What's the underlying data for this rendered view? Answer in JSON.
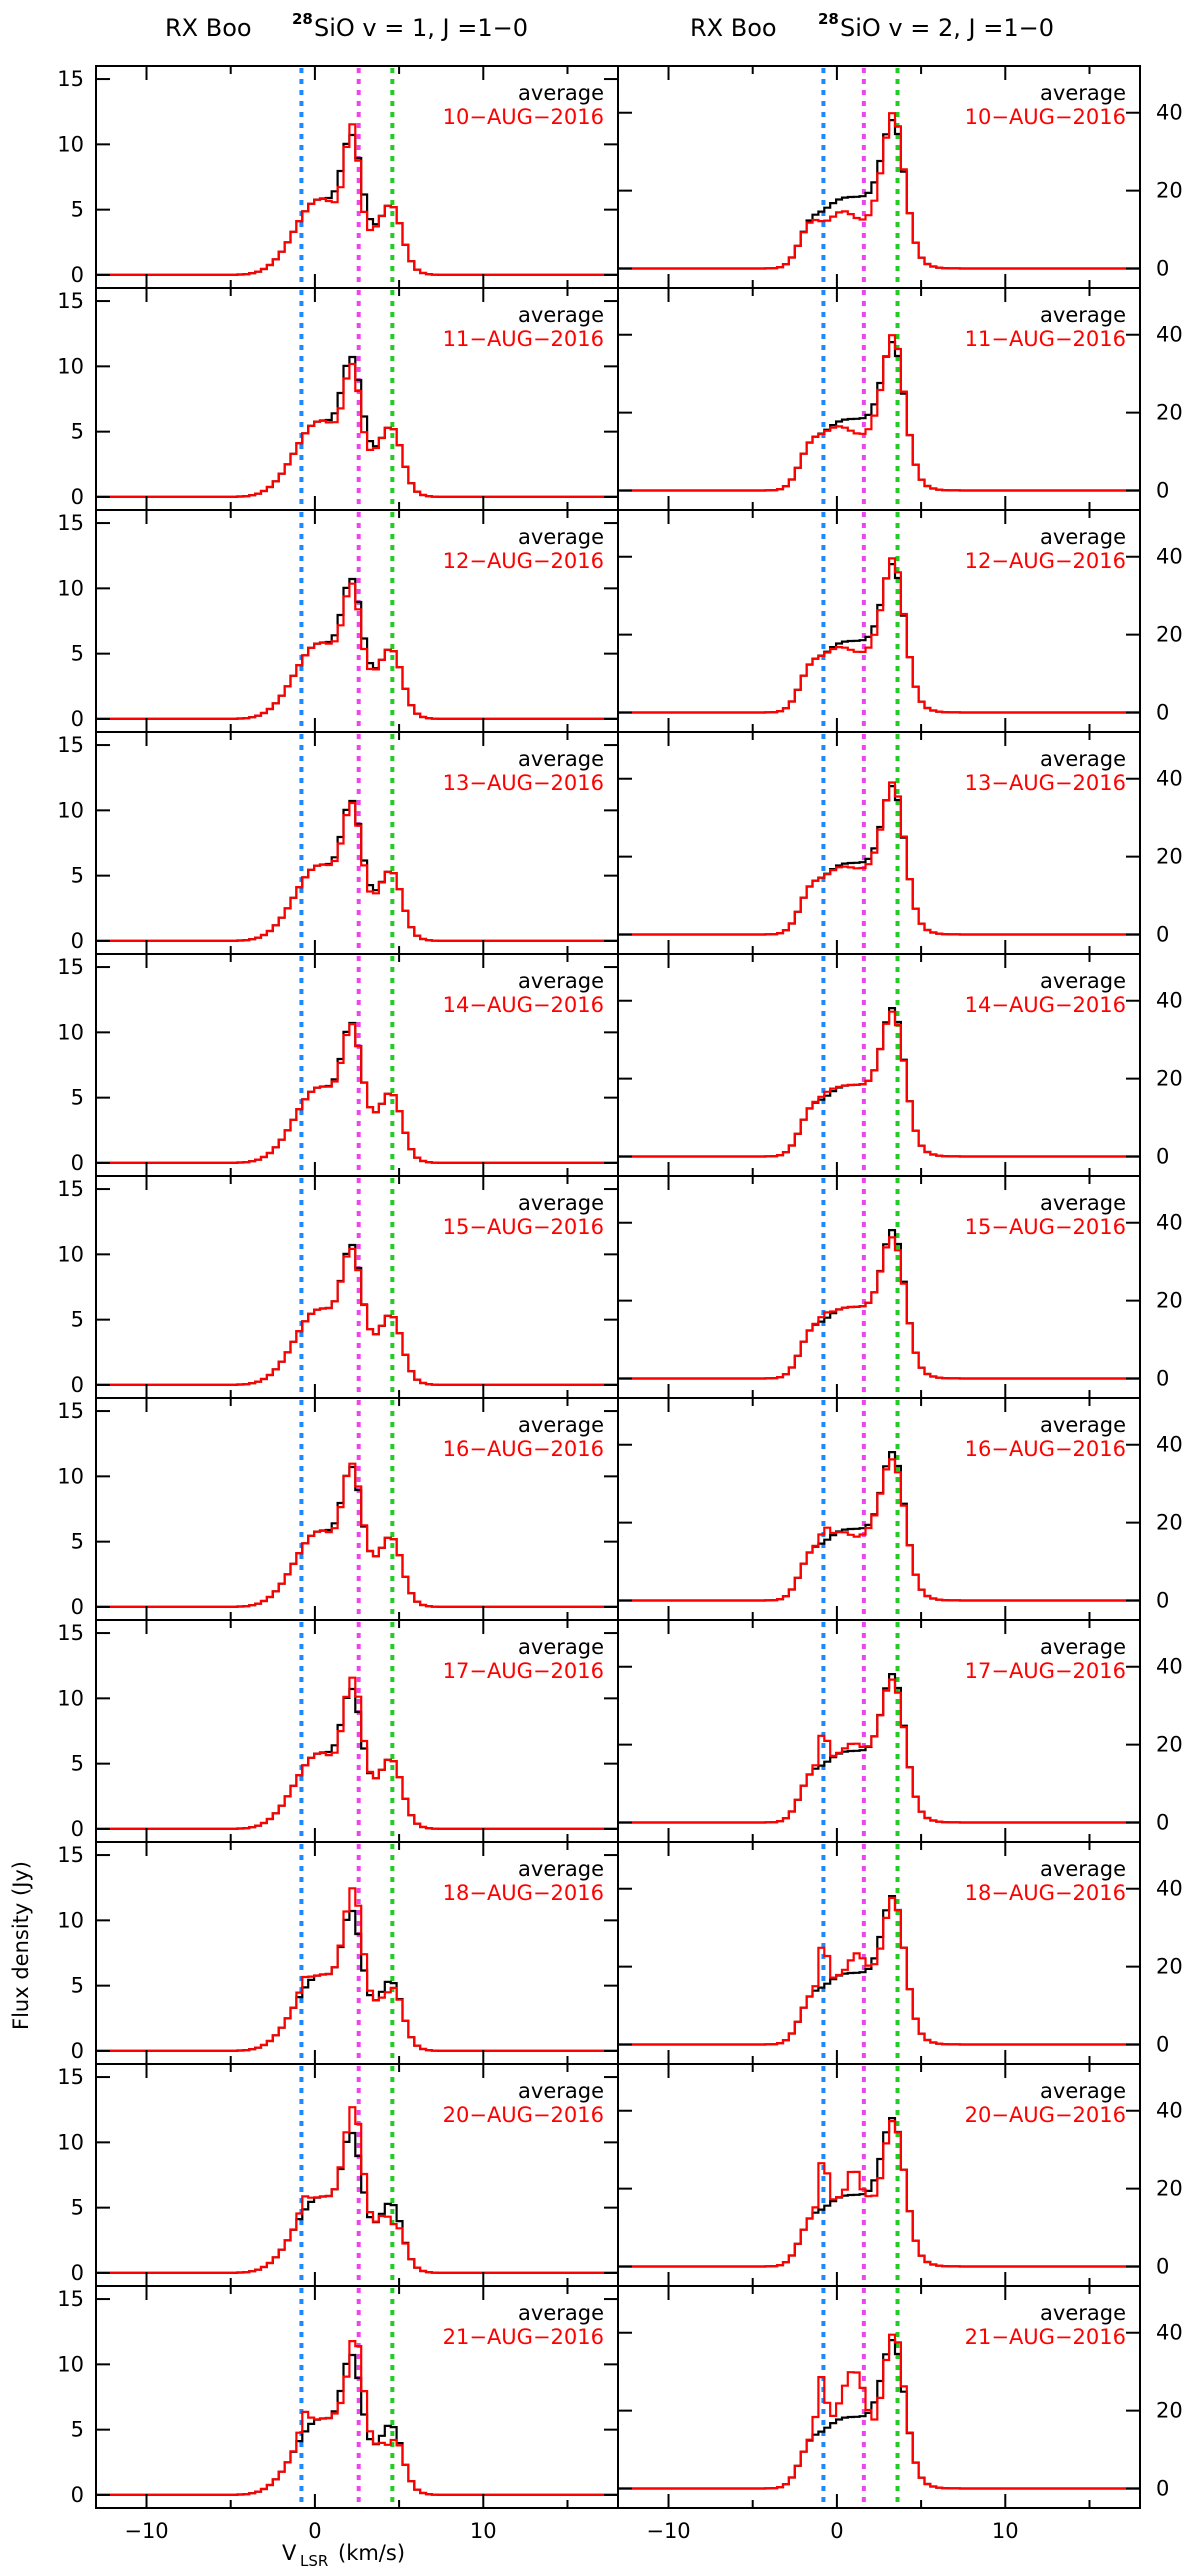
{
  "chart_data": {
    "type": "line",
    "step": true,
    "columns": [
      {
        "source": "RX Boo",
        "isotope": "28",
        "line_name": "SiO v = 1, J =1−0",
        "ylim": [
          -1,
          16
        ],
        "yticks": [
          0,
          5,
          10,
          15
        ],
        "y_axis_side": "left",
        "vlines": [
          {
            "x": -0.8,
            "color": "#1e88ff"
          },
          {
            "x": 2.6,
            "color": "#ee44ee"
          },
          {
            "x": 4.6,
            "color": "#22cc22"
          }
        ],
        "black_components": [
          {
            "c": 2.2,
            "a": 7.0,
            "w": 0.55
          },
          {
            "c": 0.0,
            "a": 4.6,
            "w": 1.4
          },
          {
            "c": 4.6,
            "a": 3.8,
            "w": 0.6
          },
          {
            "c": 3.5,
            "a": 2.2,
            "w": 1.2
          },
          {
            "c": 1.2,
            "a": 1.6,
            "w": 1.3
          }
        ]
      },
      {
        "source": "RX Boo",
        "isotope": "28",
        "line_name": "SiO v = 2, J =1−0",
        "ylim": [
          -5,
          52
        ],
        "yticks": [
          0,
          20,
          40
        ],
        "y_axis_side": "right",
        "vlines": [
          {
            "x": -0.8,
            "color": "#1e88ff"
          },
          {
            "x": 1.6,
            "color": "#ee44ee"
          },
          {
            "x": 3.6,
            "color": "#22cc22"
          }
        ],
        "black_components": [
          {
            "c": 3.4,
            "a": 28.0,
            "w": 0.65
          },
          {
            "c": 2.0,
            "a": 16.0,
            "w": 1.4
          },
          {
            "c": -0.3,
            "a": 12.0,
            "w": 1.1
          },
          {
            "c": -1.7,
            "a": 6.0,
            "w": 0.6
          }
        ]
      }
    ],
    "panels": [
      {
        "label": "average",
        "date": "10−AUG−2016",
        "v1_extra": [
          {
            "c": 2.2,
            "a": 1.5,
            "w": 0.35
          },
          {
            "c": 1.6,
            "a": -1.5,
            "w": 0.4
          },
          {
            "c": 2.9,
            "a": -1.5,
            "w": 0.35
          }
        ],
        "v2_extra": [
          {
            "c": 3.4,
            "a": 3.0,
            "w": 0.35
          },
          {
            "c": 1.6,
            "a": -6.0,
            "w": 0.9
          },
          {
            "c": -0.5,
            "a": -3.0,
            "w": 0.6
          }
        ]
      },
      {
        "label": "average",
        "date": "11−AUG−2016",
        "v1_extra": [
          {
            "c": 1.6,
            "a": -1.2,
            "w": 0.4
          },
          {
            "c": 2.9,
            "a": -1.2,
            "w": 0.35
          }
        ],
        "v2_extra": [
          {
            "c": 3.4,
            "a": 2.5,
            "w": 0.35
          },
          {
            "c": 1.5,
            "a": -4.0,
            "w": 0.9
          }
        ]
      },
      {
        "label": "average",
        "date": "12−AUG−2016",
        "v1_extra": [
          {
            "c": 1.6,
            "a": -0.8,
            "w": 0.4
          },
          {
            "c": 2.9,
            "a": -0.8,
            "w": 0.35
          }
        ],
        "v2_extra": [
          {
            "c": 3.4,
            "a": 2.0,
            "w": 0.35
          },
          {
            "c": 1.5,
            "a": -3.0,
            "w": 0.9
          }
        ]
      },
      {
        "label": "average",
        "date": "13−AUG−2016",
        "v1_extra": [
          {
            "c": 1.6,
            "a": -0.5,
            "w": 0.4
          },
          {
            "c": 3.2,
            "a": -0.5,
            "w": 0.35
          }
        ],
        "v2_extra": [
          {
            "c": 3.4,
            "a": 1.2,
            "w": 0.35
          },
          {
            "c": 1.5,
            "a": -1.5,
            "w": 0.9
          }
        ]
      },
      {
        "label": "average",
        "date": "14−AUG−2016",
        "v1_extra": [
          {
            "c": 1.6,
            "a": -0.3,
            "w": 0.4
          }
        ],
        "v2_extra": [
          {
            "c": 3.4,
            "a": -1.0,
            "w": 0.35
          },
          {
            "c": -0.6,
            "a": 1.0,
            "w": 0.4
          }
        ]
      },
      {
        "label": "average",
        "date": "15−AUG−2016",
        "v1_extra": [
          {
            "c": 2.2,
            "a": -0.3,
            "w": 0.35
          }
        ],
        "v2_extra": [
          {
            "c": 3.4,
            "a": -2.0,
            "w": 0.35
          },
          {
            "c": -0.7,
            "a": 1.5,
            "w": 0.3
          }
        ]
      },
      {
        "label": "average",
        "date": "16−AUG−2016",
        "v1_extra": [
          {
            "c": 2.4,
            "a": 0.3,
            "w": 0.35
          },
          {
            "c": 1.3,
            "a": -0.4,
            "w": 0.35
          }
        ],
        "v2_extra": [
          {
            "c": 3.4,
            "a": -2.0,
            "w": 0.35
          },
          {
            "c": -0.7,
            "a": 3.5,
            "w": 0.25
          },
          {
            "c": 1.2,
            "a": -2.0,
            "w": 0.5
          }
        ]
      },
      {
        "label": "average",
        "date": "17−AUG−2016",
        "v1_extra": [
          {
            "c": 2.5,
            "a": 1.2,
            "w": 0.35
          },
          {
            "c": 1.3,
            "a": -0.6,
            "w": 0.35
          }
        ],
        "v2_extra": [
          {
            "c": 3.4,
            "a": -1.5,
            "w": 0.35
          },
          {
            "c": -0.8,
            "a": 9.0,
            "w": 0.22
          },
          {
            "c": 1.0,
            "a": 2.0,
            "w": 0.4
          }
        ]
      },
      {
        "label": "average",
        "date": "18−AUG−2016",
        "v1_extra": [
          {
            "c": 2.5,
            "a": 2.2,
            "w": 0.4
          },
          {
            "c": 4.3,
            "a": -0.8,
            "w": 0.3
          },
          {
            "c": -0.6,
            "a": 0.8,
            "w": 0.25
          }
        ],
        "v2_extra": [
          {
            "c": -0.8,
            "a": 12.0,
            "w": 0.22
          },
          {
            "c": 1.2,
            "a": 5.0,
            "w": 0.4
          },
          {
            "c": 2.6,
            "a": -3.0,
            "w": 0.35
          }
        ]
      },
      {
        "label": "average",
        "date": "20−AUG−2016",
        "v1_extra": [
          {
            "c": 2.5,
            "a": 2.5,
            "w": 0.4
          },
          {
            "c": -0.6,
            "a": 1.0,
            "w": 0.25
          },
          {
            "c": 4.6,
            "a": -1.5,
            "w": 0.3
          }
        ],
        "v2_extra": [
          {
            "c": -0.8,
            "a": 14.0,
            "w": 0.22
          },
          {
            "c": 1.0,
            "a": 7.0,
            "w": 0.3
          },
          {
            "c": 2.5,
            "a": -5.0,
            "w": 0.4
          }
        ]
      },
      {
        "label": "average",
        "date": "21−AUG−2016",
        "v1_extra": [
          {
            "c": 2.6,
            "a": 2.5,
            "w": 0.4
          },
          {
            "c": -0.6,
            "a": 1.5,
            "w": 0.25
          },
          {
            "c": 1.8,
            "a": -1.5,
            "w": 0.3
          },
          {
            "c": 4.4,
            "a": -1.5,
            "w": 0.3
          }
        ],
        "v2_extra": [
          {
            "c": -0.9,
            "a": 14.0,
            "w": 0.25
          },
          {
            "c": 1.0,
            "a": 12.0,
            "w": 0.6
          },
          {
            "c": 2.3,
            "a": -6.0,
            "w": 0.4
          },
          {
            "c": 3.6,
            "a": 3.0,
            "w": 0.3
          }
        ]
      }
    ],
    "xlim": [
      -13,
      18
    ],
    "xticks": [
      -10,
      0,
      10
    ],
    "xlabel_main": "V",
    "xlabel_sub": "LSR",
    "xlabel_unit": "(km/s)",
    "ylabel": "Flux density (Jy)",
    "series_colors": {
      "average": "#000000",
      "daily": "#ff0000"
    }
  }
}
